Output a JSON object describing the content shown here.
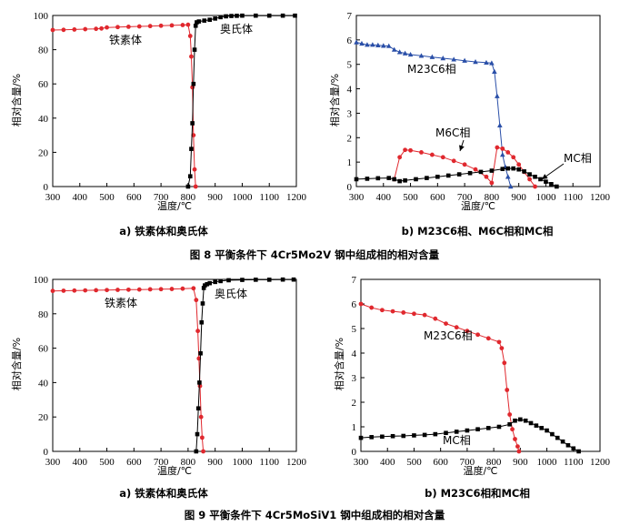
{
  "chart_data": [
    {
      "id": "p8a",
      "type": "scatter",
      "xlabel": "温度/℃",
      "ylabel": "相对含量/%",
      "xlim": [
        300,
        1200
      ],
      "ylim": [
        0,
        100
      ],
      "xticks": [
        300,
        400,
        500,
        600,
        700,
        800,
        900,
        1000,
        1100,
        1200
      ],
      "yticks": [
        0,
        20,
        40,
        60,
        80,
        100
      ],
      "subcaption": "a) 铁素体和奥氏体",
      "series": [
        {
          "name": "铁素体",
          "color": "#e0282e",
          "marker": "circle",
          "x": [
            300,
            340,
            380,
            420,
            460,
            480,
            500,
            540,
            580,
            620,
            660,
            700,
            740,
            780,
            800,
            808,
            812,
            816,
            820,
            824,
            828
          ],
          "y": [
            91.5,
            91.6,
            91.8,
            92,
            92.2,
            92.4,
            93,
            93.2,
            93.4,
            93.6,
            93.8,
            94,
            94.2,
            94.4,
            94.6,
            88,
            76,
            58,
            30,
            10,
            0
          ]
        },
        {
          "name": "奥氏体",
          "color": "#000000",
          "marker": "square",
          "x": [
            800,
            808,
            812,
            816,
            820,
            824,
            828,
            832,
            840,
            860,
            880,
            900,
            920,
            940,
            960,
            980,
            1000,
            1050,
            1100,
            1150,
            1195
          ],
          "y": [
            0,
            6,
            22,
            37,
            60,
            80,
            94,
            96,
            96.5,
            97,
            97.5,
            98.2,
            99,
            99.5,
            99.7,
            99.8,
            99.9,
            99.9,
            99.9,
            99.9,
            99.9
          ]
        }
      ],
      "annotations": [
        "铁素体",
        "奥氏体"
      ]
    },
    {
      "id": "p8b",
      "type": "scatter",
      "xlabel": "温度/℃",
      "ylabel": "相对含量/%",
      "xlim": [
        300,
        1200
      ],
      "ylim": [
        0,
        7
      ],
      "xticks": [
        300,
        400,
        500,
        600,
        700,
        800,
        900,
        1000,
        1100,
        1200
      ],
      "yticks": [
        0,
        1,
        2,
        3,
        4,
        5,
        6,
        7
      ],
      "subcaption": "b) M23C6相、M6C相和MC相",
      "series": [
        {
          "name": "M23C6相",
          "color": "#2a4fa8",
          "marker": "triangle",
          "x": [
            300,
            320,
            340,
            360,
            380,
            400,
            420,
            440,
            460,
            480,
            500,
            540,
            580,
            620,
            660,
            700,
            740,
            780,
            800,
            810,
            820,
            830,
            840,
            850,
            860,
            870
          ],
          "y": [
            5.9,
            5.85,
            5.8,
            5.8,
            5.78,
            5.76,
            5.75,
            5.6,
            5.5,
            5.45,
            5.4,
            5.35,
            5.3,
            5.25,
            5.2,
            5.15,
            5.1,
            5.07,
            5.05,
            4.7,
            3.7,
            2.5,
            1.3,
            0.8,
            0.4,
            0
          ]
        },
        {
          "name": "M6C相",
          "color": "#e0282e",
          "marker": "circle",
          "x": [
            440,
            460,
            480,
            500,
            540,
            580,
            620,
            660,
            700,
            740,
            780,
            800,
            820,
            840,
            860,
            880,
            900,
            920,
            940,
            960
          ],
          "y": [
            0.3,
            1.2,
            1.5,
            1.48,
            1.4,
            1.3,
            1.2,
            1.05,
            0.9,
            0.7,
            0.4,
            0.15,
            1.6,
            1.55,
            1.4,
            1.2,
            0.9,
            0.6,
            0.3,
            0
          ]
        },
        {
          "name": "MC相",
          "color": "#000000",
          "marker": "square",
          "x": [
            300,
            340,
            380,
            420,
            440,
            460,
            480,
            520,
            560,
            600,
            640,
            680,
            720,
            760,
            800,
            840,
            860,
            880,
            900,
            920,
            940,
            960,
            980,
            1000,
            1020,
            1040
          ],
          "y": [
            0.3,
            0.32,
            0.34,
            0.35,
            0.3,
            0.22,
            0.25,
            0.3,
            0.35,
            0.4,
            0.45,
            0.5,
            0.55,
            0.6,
            0.65,
            0.72,
            0.74,
            0.74,
            0.7,
            0.62,
            0.5,
            0.4,
            0.3,
            0.2,
            0.1,
            0
          ]
        }
      ],
      "annotations": [
        "M23C6相",
        "M6C相",
        "MC相"
      ]
    },
    {
      "id": "p9a",
      "type": "scatter",
      "xlabel": "温度/℃",
      "ylabel": "相对含量/%",
      "xlim": [
        300,
        1200
      ],
      "ylim": [
        0,
        100
      ],
      "xticks": [
        300,
        400,
        500,
        600,
        700,
        800,
        900,
        1000,
        1100,
        1200
      ],
      "yticks": [
        0,
        20,
        40,
        60,
        80,
        100
      ],
      "subcaption": "a) 铁素体和奥氏体",
      "series": [
        {
          "name": "铁素体",
          "color": "#e0282e",
          "marker": "circle",
          "x": [
            300,
            340,
            380,
            420,
            460,
            500,
            540,
            580,
            620,
            660,
            700,
            740,
            780,
            820,
            830,
            836,
            840,
            844,
            848,
            852,
            856
          ],
          "y": [
            93.3,
            93.4,
            93.5,
            93.6,
            93.7,
            93.8,
            93.9,
            94,
            94.1,
            94.2,
            94.3,
            94.4,
            94.6,
            94.8,
            88,
            70,
            54,
            38,
            20,
            8,
            0
          ]
        },
        {
          "name": "奥氏体",
          "color": "#000000",
          "marker": "square",
          "x": [
            830,
            834,
            838,
            842,
            846,
            850,
            854,
            858,
            862,
            870,
            880,
            900,
            920,
            950,
            1000,
            1050,
            1100,
            1150,
            1190
          ],
          "y": [
            0,
            10,
            25,
            40,
            57,
            75,
            86,
            95,
            96.5,
            97.2,
            97.8,
            98.5,
            99,
            99.5,
            99.7,
            99.8,
            99.8,
            99.9,
            99.9
          ]
        }
      ],
      "annotations": [
        "铁素体",
        "奥氏体"
      ]
    },
    {
      "id": "p9b",
      "type": "scatter",
      "xlabel": "温度/℃",
      "ylabel": "相对含量/%",
      "xlim": [
        300,
        1200
      ],
      "ylim": [
        0,
        7
      ],
      "xticks": [
        300,
        400,
        500,
        600,
        700,
        800,
        900,
        1000,
        1100,
        1200
      ],
      "yticks": [
        0,
        1,
        2,
        3,
        4,
        5,
        6,
        7
      ],
      "subcaption": "b) M23C6相和MC相",
      "series": [
        {
          "name": "M23C6相",
          "color": "#e0282e",
          "marker": "circle",
          "x": [
            300,
            340,
            380,
            420,
            460,
            500,
            540,
            580,
            620,
            660,
            700,
            740,
            780,
            820,
            830,
            840,
            850,
            860,
            870,
            880,
            890,
            895
          ],
          "y": [
            6,
            5.85,
            5.75,
            5.7,
            5.65,
            5.6,
            5.55,
            5.4,
            5.2,
            5.05,
            4.9,
            4.75,
            4.6,
            4.45,
            4.2,
            3.6,
            2.5,
            1.5,
            0.9,
            0.5,
            0.2,
            0
          ]
        },
        {
          "name": "MC相",
          "color": "#000000",
          "marker": "square",
          "x": [
            300,
            340,
            380,
            420,
            460,
            500,
            540,
            580,
            620,
            660,
            700,
            740,
            780,
            820,
            860,
            880,
            900,
            920,
            940,
            960,
            980,
            1000,
            1020,
            1040,
            1060,
            1080,
            1100,
            1120
          ],
          "y": [
            0.55,
            0.58,
            0.6,
            0.62,
            0.63,
            0.65,
            0.67,
            0.7,
            0.75,
            0.8,
            0.85,
            0.9,
            0.95,
            1.0,
            1.1,
            1.25,
            1.3,
            1.25,
            1.15,
            1.05,
            0.95,
            0.85,
            0.7,
            0.55,
            0.4,
            0.25,
            0.12,
            0
          ]
        }
      ],
      "annotations": [
        "M23C6相",
        "MC相"
      ]
    }
  ],
  "figures": [
    {
      "caption": "图 8 平衡条件下 4Cr5Mo2V 钢中组成相的相对含量"
    },
    {
      "caption": "图 9 平衡条件下 4Cr5MoSiV1 钢中组成相的相对含量"
    }
  ]
}
